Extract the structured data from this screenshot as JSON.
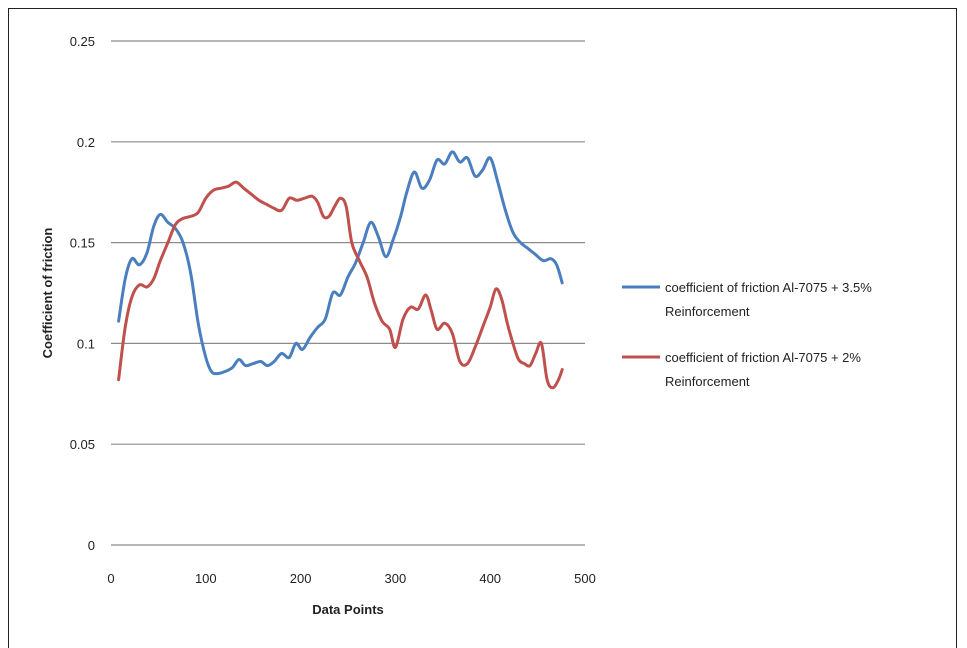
{
  "chart_data": {
    "type": "line",
    "xlabel": "Data Points",
    "ylabel": "Coefficient of friction",
    "xlim": [
      0,
      500
    ],
    "ylim": [
      0,
      0.25
    ],
    "x_ticks": [
      "0",
      "100",
      "200",
      "300",
      "400",
      "500"
    ],
    "y_ticks": [
      "0",
      "0.05",
      "0.1",
      "0.15",
      "0.2",
      "0.25"
    ],
    "grid": "horizontal",
    "legend_position": "right",
    "series": [
      {
        "name_lines": [
          "coefficient of friction Al-7075 + 3.5%",
          "Reinforcement"
        ],
        "color": "#4a7ebf",
        "x": [
          8,
          15,
          22,
          30,
          38,
          45,
          52,
          60,
          68,
          76,
          84,
          92,
          100,
          106,
          112,
          120,
          128,
          135,
          142,
          150,
          158,
          165,
          172,
          180,
          188,
          195,
          202,
          210,
          218,
          226,
          234,
          242,
          250,
          258,
          266,
          274,
          282,
          290,
          298,
          305,
          312,
          320,
          328,
          336,
          344,
          352,
          360,
          368,
          376,
          384,
          392,
          400,
          408,
          416,
          424,
          432,
          440,
          448,
          456,
          464,
          470,
          476
        ],
        "y": [
          0.111,
          0.132,
          0.142,
          0.139,
          0.145,
          0.158,
          0.164,
          0.16,
          0.157,
          0.15,
          0.135,
          0.11,
          0.093,
          0.086,
          0.085,
          0.086,
          0.088,
          0.092,
          0.089,
          0.09,
          0.091,
          0.089,
          0.091,
          0.095,
          0.093,
          0.1,
          0.097,
          0.103,
          0.108,
          0.112,
          0.125,
          0.124,
          0.133,
          0.14,
          0.15,
          0.16,
          0.153,
          0.143,
          0.152,
          0.162,
          0.175,
          0.185,
          0.177,
          0.181,
          0.191,
          0.189,
          0.195,
          0.19,
          0.192,
          0.183,
          0.186,
          0.192,
          0.18,
          0.166,
          0.155,
          0.15,
          0.147,
          0.144,
          0.141,
          0.142,
          0.139,
          0.13
        ]
      },
      {
        "name_lines": [
          "coefficient of friction Al-7075 + 2%",
          "Reinforcement"
        ],
        "color": "#c0504d",
        "x": [
          8,
          15,
          22,
          30,
          38,
          45,
          52,
          60,
          68,
          76,
          84,
          92,
          100,
          108,
          116,
          124,
          132,
          140,
          148,
          156,
          164,
          172,
          180,
          188,
          196,
          204,
          212,
          218,
          224,
          230,
          236,
          242,
          248,
          254,
          262,
          270,
          278,
          286,
          294,
          300,
          308,
          316,
          324,
          332,
          338,
          344,
          352,
          360,
          368,
          376,
          384,
          392,
          400,
          406,
          412,
          418,
          424,
          430,
          436,
          442,
          448,
          454,
          460,
          466,
          472,
          476
        ],
        "y": [
          0.082,
          0.108,
          0.123,
          0.129,
          0.128,
          0.132,
          0.141,
          0.15,
          0.159,
          0.162,
          0.163,
          0.165,
          0.172,
          0.176,
          0.177,
          0.178,
          0.18,
          0.177,
          0.174,
          0.171,
          0.169,
          0.167,
          0.166,
          0.172,
          0.171,
          0.172,
          0.173,
          0.17,
          0.163,
          0.163,
          0.168,
          0.172,
          0.168,
          0.15,
          0.141,
          0.133,
          0.12,
          0.111,
          0.107,
          0.098,
          0.112,
          0.118,
          0.117,
          0.124,
          0.116,
          0.107,
          0.11,
          0.105,
          0.091,
          0.09,
          0.098,
          0.108,
          0.118,
          0.127,
          0.122,
          0.11,
          0.1,
          0.092,
          0.09,
          0.089,
          0.095,
          0.1,
          0.082,
          0.078,
          0.082,
          0.087
        ]
      }
    ]
  }
}
